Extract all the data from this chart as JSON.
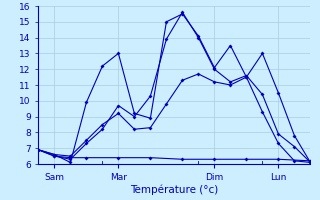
{
  "xlabel": "Température (°c)",
  "background_color": "#cceeff",
  "grid_color": "#aaccdd",
  "line_color": "#0000bb",
  "ylim": [
    6,
    16
  ],
  "xlim": [
    0,
    8.5
  ],
  "ytick_positions": [
    6,
    7,
    8,
    9,
    10,
    11,
    12,
    13,
    14,
    15,
    16
  ],
  "xtick_positions": [
    0.5,
    2.5,
    5.5,
    7.5
  ],
  "xtick_labels": [
    "Sam",
    "Mar",
    "Dim",
    "Lun"
  ],
  "lines": [
    {
      "x": [
        0,
        0.5,
        1.0,
        1.5,
        2.5,
        3.5,
        4.5,
        5.5,
        6.5,
        7.5,
        8.5
      ],
      "y": [
        6.9,
        6.5,
        6.4,
        6.4,
        6.4,
        6.4,
        6.3,
        6.3,
        6.3,
        6.3,
        6.2
      ]
    },
    {
      "x": [
        0,
        0.5,
        1.0,
        1.5,
        2.0,
        2.5,
        3.0,
        3.5,
        4.0,
        4.5,
        5.0,
        5.5,
        6.0,
        6.5,
        7.0,
        7.5,
        8.0,
        8.5
      ],
      "y": [
        6.9,
        6.6,
        6.5,
        7.5,
        8.5,
        9.2,
        8.2,
        8.3,
        9.8,
        11.3,
        11.7,
        11.2,
        11.0,
        11.5,
        9.3,
        7.3,
        6.2,
        6.1
      ]
    },
    {
      "x": [
        0,
        0.5,
        1.0,
        1.5,
        2.0,
        2.5,
        3.0,
        3.5,
        4.0,
        4.5,
        5.0,
        5.5,
        6.0,
        6.5,
        7.0,
        7.5,
        8.0,
        8.5
      ],
      "y": [
        6.9,
        6.5,
        6.3,
        7.3,
        8.2,
        9.7,
        9.0,
        10.3,
        13.9,
        15.6,
        14.0,
        12.0,
        11.2,
        11.6,
        10.4,
        7.9,
        7.1,
        6.1
      ]
    },
    {
      "x": [
        0,
        0.5,
        1.0,
        1.5,
        2.0,
        2.5,
        3.0,
        3.5,
        4.0,
        4.5,
        5.0,
        5.5,
        6.0,
        6.5,
        7.0,
        7.5,
        8.0,
        8.5
      ],
      "y": [
        6.9,
        6.6,
        6.1,
        9.9,
        12.2,
        13.0,
        9.2,
        8.9,
        15.0,
        15.5,
        14.1,
        12.1,
        13.5,
        11.5,
        13.0,
        10.5,
        7.8,
        6.1
      ]
    }
  ]
}
